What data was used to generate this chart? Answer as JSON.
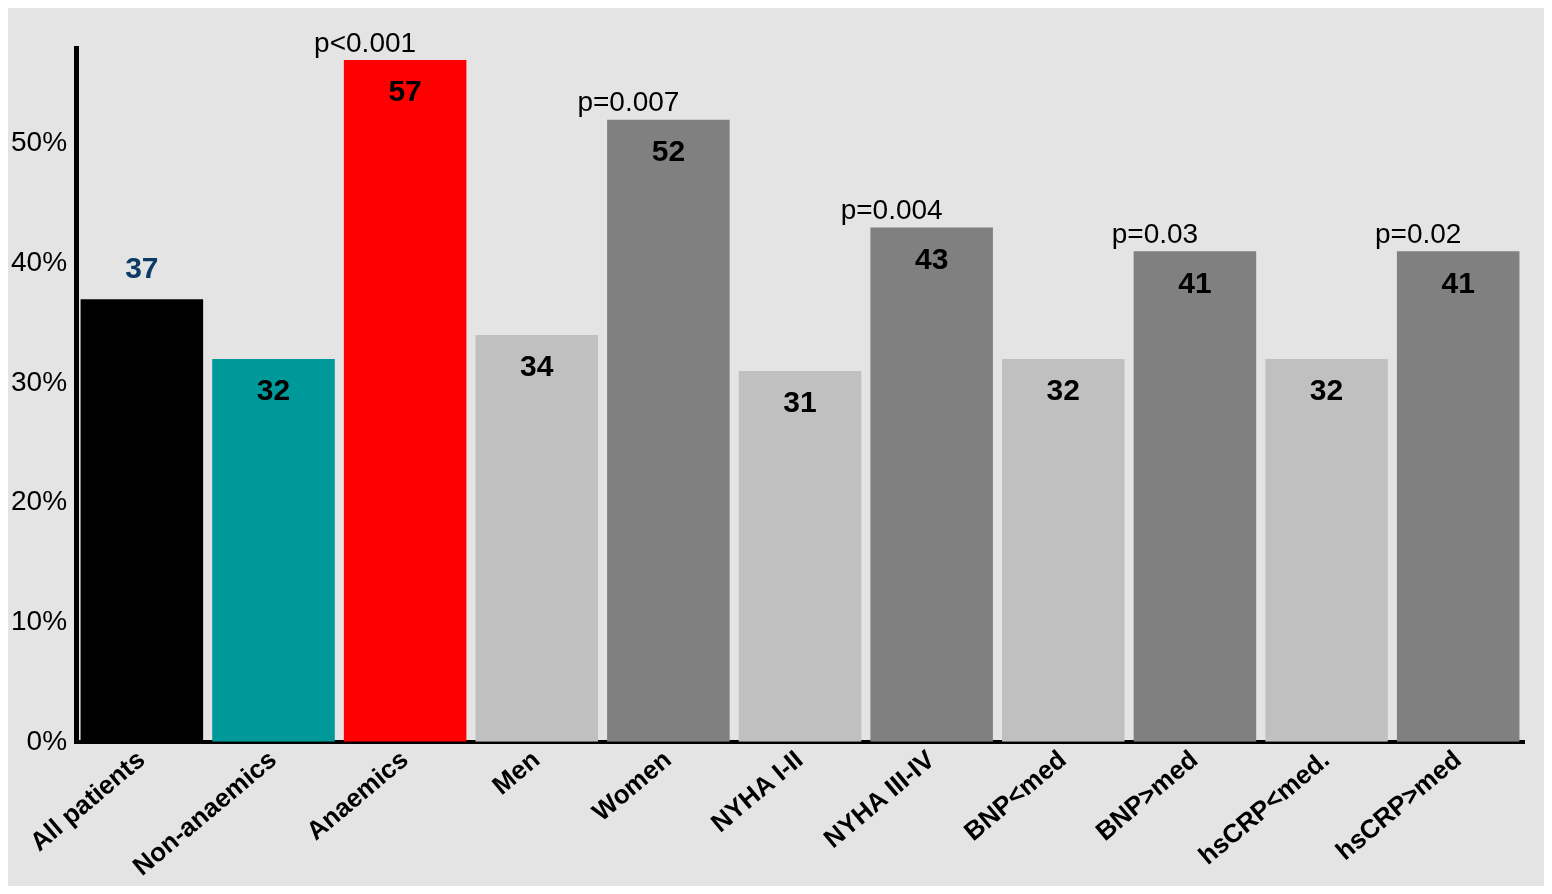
{
  "chart_data": {
    "type": "bar",
    "categories": [
      "All patients",
      "Non-anaemics",
      "Anaemics",
      "Men",
      "Women",
      "NYHA I-II",
      "NYHA III-IV",
      "BNP<med",
      "BNP>med",
      "hsCRP<med.",
      "hsCRP>med"
    ],
    "values": [
      37,
      32,
      57,
      34,
      52,
      31,
      43,
      32,
      41,
      32,
      41
    ],
    "colors": [
      "#000000",
      "#009999",
      "#ff0000",
      "#c0c0c0",
      "#808080",
      "#c0c0c0",
      "#808080",
      "#c0c0c0",
      "#808080",
      "#c0c0c0",
      "#808080"
    ],
    "ylim": [
      0,
      58
    ],
    "yticks": [
      {
        "value": 0,
        "label": "0%"
      },
      {
        "value": 10,
        "label": "10%"
      },
      {
        "value": 20,
        "label": "20%"
      },
      {
        "value": 30,
        "label": "30%"
      },
      {
        "value": 40,
        "label": "40%"
      },
      {
        "value": 50,
        "label": "50%"
      }
    ],
    "data_labels": true,
    "grid": false,
    "legend": false,
    "annotations": [
      {
        "text": "p<0.001",
        "x": "Anaemics",
        "y": 57
      },
      {
        "text": "p=0.007",
        "x": "Women",
        "y": 52
      },
      {
        "text": "p=0.004",
        "x": "NYHA III-IV",
        "y": 43
      },
      {
        "text": "p=0.03",
        "x": "BNP>med",
        "y": 41
      },
      {
        "text": "p=0.02",
        "x": "hsCRP>med",
        "y": 41
      }
    ]
  }
}
